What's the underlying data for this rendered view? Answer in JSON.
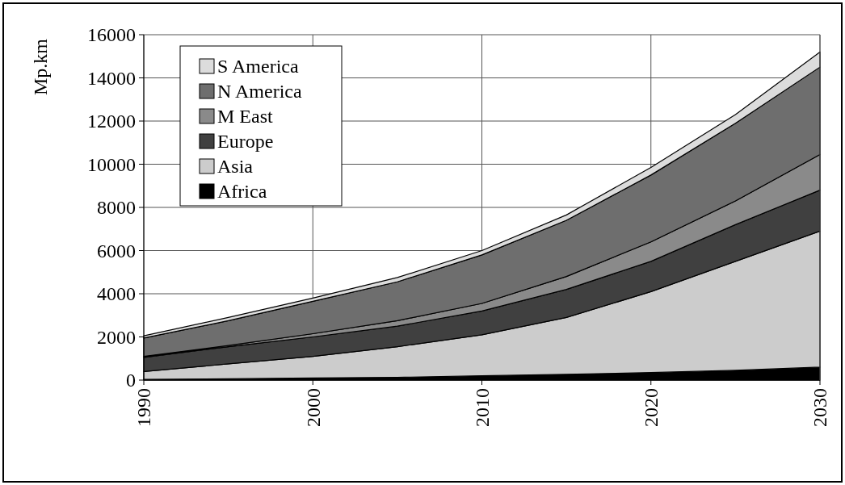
{
  "chart_data": {
    "type": "area",
    "stacked": true,
    "ylabel": "Mp.km",
    "x": [
      1990,
      1995,
      2000,
      2005,
      2010,
      2015,
      2020,
      2025,
      2030
    ],
    "series": [
      {
        "name": "Africa",
        "color": "#000000",
        "values": [
          30,
          60,
          100,
          130,
          200,
          270,
          350,
          450,
          600
        ]
      },
      {
        "name": "Asia",
        "color": "#cccccc",
        "values": [
          370,
          690,
          1000,
          1420,
          1900,
          2630,
          3750,
          5050,
          6300
        ]
      },
      {
        "name": "Europe",
        "color": "#404040",
        "values": [
          650,
          800,
          900,
          950,
          1100,
          1300,
          1400,
          1700,
          1900
        ]
      },
      {
        "name": "M East",
        "color": "#8a8a8a",
        "values": [
          50,
          50,
          150,
          250,
          350,
          600,
          900,
          1100,
          1650
        ]
      },
      {
        "name": "N America",
        "color": "#6e6e6e",
        "values": [
          850,
          1150,
          1500,
          1800,
          2250,
          2600,
          3100,
          3600,
          4050
        ]
      },
      {
        "name": "S America",
        "color": "#dcdcdc",
        "values": [
          100,
          150,
          150,
          200,
          200,
          250,
          350,
          400,
          700
        ]
      }
    ],
    "xlim": [
      1990,
      2030
    ],
    "xticks": [
      1990,
      2000,
      2010,
      2020,
      2030
    ],
    "ylim": [
      0,
      16000
    ],
    "yticks": [
      0,
      2000,
      4000,
      6000,
      8000,
      10000,
      12000,
      14000,
      16000
    ],
    "grid": true,
    "legend": "top left"
  }
}
